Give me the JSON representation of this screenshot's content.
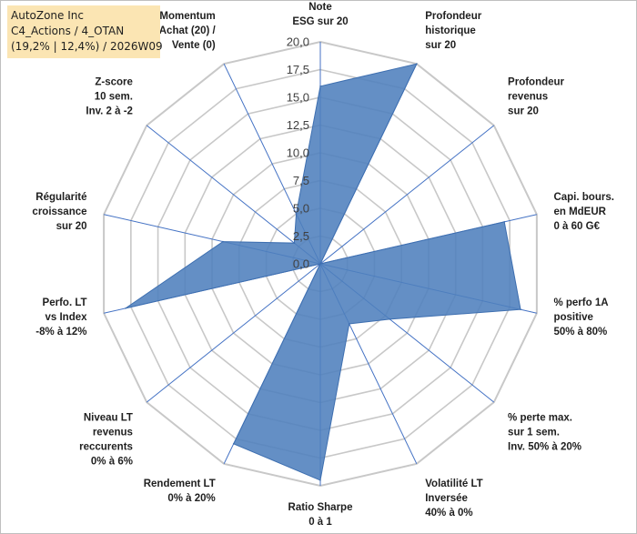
{
  "title_box": {
    "line1": "AutoZone Inc",
    "line2": "C4_Actions / 4_OTAN",
    "line3": "(19,2% | 12,4%) / 2026W09"
  },
  "chart_data": {
    "type": "radar",
    "rmax": 20,
    "tick_labels": [
      "0,0",
      "2,5",
      "5,0",
      "7,5",
      "10,0",
      "12,5",
      "15,0",
      "17,5",
      "20,0"
    ],
    "axes": [
      {
        "label": [
          "Note",
          "ESG sur 20"
        ],
        "value": 16
      },
      {
        "label": [
          "Profondeur",
          "historique",
          "sur 20"
        ],
        "value": 20
      },
      {
        "label": [
          "Profondeur",
          "revenus",
          "sur 20"
        ],
        "value": 0
      },
      {
        "label": [
          "Capi. bours.",
          "en MdEUR",
          "0 à 60 G€"
        ],
        "value": 17
      },
      {
        "label": [
          "% perfo 1A",
          "positive",
          "50% à 80%"
        ],
        "value": 18.5
      },
      {
        "label": [
          "% perte max.",
          "sur 1 sem.",
          "Inv. 50% à 20%"
        ],
        "value": 8
      },
      {
        "label": [
          "Volatilité LT",
          "Inversée",
          "40% à 0%"
        ],
        "value": 6
      },
      {
        "label": [
          "Ratio Sharpe",
          "0 à 1"
        ],
        "value": 19.5
      },
      {
        "label": [
          "Rendement LT",
          "0% à 20%"
        ],
        "value": 18
      },
      {
        "label": [
          "Niveau LT",
          "revenus",
          "reccurents",
          "0% à 6%"
        ],
        "value": 0
      },
      {
        "label": [
          "Perfo. LT",
          "vs Index",
          "-8% à 12%"
        ],
        "value": 18
      },
      {
        "label": [
          "Régularité",
          "croissance",
          "sur 20"
        ],
        "value": 9
      },
      {
        "label": [
          "Z-score",
          "10 sem.",
          "Inv. 2 à -2"
        ],
        "value": 3
      },
      {
        "label": [
          "Momentum",
          "Achat (20) /",
          "Vente (0)"
        ],
        "value": 5
      }
    ],
    "colors": {
      "fill": "#4f7fbd",
      "stroke": "#3e6fb0",
      "axis": "#4472c4",
      "grid": "#c8c8c8"
    }
  }
}
